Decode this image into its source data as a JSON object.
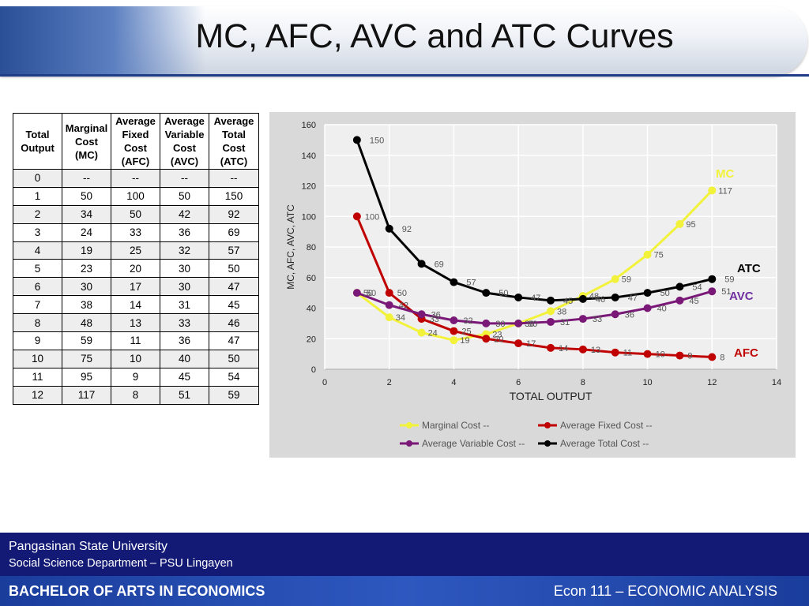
{
  "slide": {
    "title": "MC, AFC, AVC and ATC Curves"
  },
  "table": {
    "headers": [
      "Total Output",
      "Marginal Cost (MC)",
      "Average Fixed Cost (AFC)",
      "Average Variable Cost (AVC)",
      "Average Total Cost (ATC)"
    ],
    "rows": [
      [
        "0",
        "--",
        "--",
        "--",
        "--"
      ],
      [
        "1",
        "50",
        "100",
        "50",
        "150"
      ],
      [
        "2",
        "34",
        "50",
        "42",
        "92"
      ],
      [
        "3",
        "24",
        "33",
        "36",
        "69"
      ],
      [
        "4",
        "19",
        "25",
        "32",
        "57"
      ],
      [
        "5",
        "23",
        "20",
        "30",
        "50"
      ],
      [
        "6",
        "30",
        "17",
        "30",
        "47"
      ],
      [
        "7",
        "38",
        "14",
        "31",
        "45"
      ],
      [
        "8",
        "48",
        "13",
        "33",
        "46"
      ],
      [
        "9",
        "59",
        "11",
        "36",
        "47"
      ],
      [
        "10",
        "75",
        "10",
        "40",
        "50"
      ],
      [
        "11",
        "95",
        "9",
        "45",
        "54"
      ],
      [
        "12",
        "117",
        "8",
        "51",
        "59"
      ]
    ]
  },
  "chart_data": {
    "type": "line",
    "xlabel": "TOTAL OUTPUT",
    "ylabel": "MC, AFC, AVC, ATC",
    "xlim": [
      0,
      14
    ],
    "ylim": [
      0,
      160
    ],
    "xticks": [
      0,
      2,
      4,
      6,
      8,
      10,
      12,
      14
    ],
    "yticks": [
      0,
      20,
      40,
      60,
      80,
      100,
      120,
      140,
      160
    ],
    "x": [
      1,
      2,
      3,
      4,
      5,
      6,
      7,
      8,
      9,
      10,
      11,
      12
    ],
    "series": [
      {
        "name": "Marginal Cost --",
        "tag": "MC",
        "color": "#f2f23a",
        "tag_color": "#f2f23a",
        "values": [
          50,
          34,
          24,
          19,
          23,
          30,
          38,
          48,
          59,
          75,
          95,
          117
        ]
      },
      {
        "name": "Average Fixed Cost --",
        "tag": "AFC",
        "color": "#c00000",
        "tag_color": "#c00000",
        "values": [
          100,
          50,
          33,
          25,
          20,
          17,
          14,
          13,
          11,
          10,
          9,
          8
        ]
      },
      {
        "name": "Average Variable Cost --",
        "tag": "AVC",
        "color": "#7a1878",
        "tag_color": "#7030a0",
        "values": [
          50,
          42,
          36,
          32,
          30,
          30,
          31,
          33,
          36,
          40,
          45,
          51
        ]
      },
      {
        "name": "Average Total Cost  --",
        "tag": "ATC",
        "color": "#000000",
        "tag_color": "#000000",
        "values": [
          150,
          92,
          69,
          57,
          50,
          47,
          45,
          46,
          47,
          50,
          54,
          59
        ]
      }
    ],
    "legend_position": "bottom",
    "grid": true
  },
  "footer": {
    "university": "Pangasinan State University",
    "department": "Social Science  Department – PSU Lingayen",
    "program": "BACHELOR OF ARTS IN ECONOMICS",
    "course": "Econ 111 – ECONOMIC ANALYSIS"
  }
}
